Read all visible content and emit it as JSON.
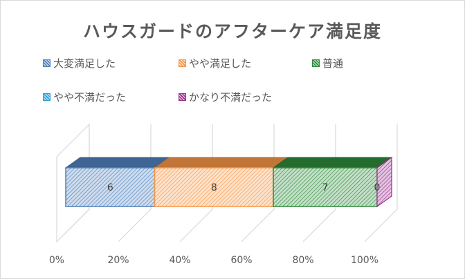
{
  "chart_data": {
    "type": "bar",
    "stacked": "100%",
    "orientation": "horizontal",
    "three_d": true,
    "title": "ハウスガードのアフターケア満足度",
    "categories": [
      ""
    ],
    "series": [
      {
        "name": "大変満足した",
        "values": [
          6
        ],
        "color": "#4f81bd",
        "data_label": "6"
      },
      {
        "name": "やや満足した",
        "values": [
          8
        ],
        "color": "#f79646",
        "data_label": "8"
      },
      {
        "name": "普通",
        "values": [
          7
        ],
        "color": "#2e8b3a",
        "data_label": "7"
      },
      {
        "name": "やや不満だった",
        "values": [
          0
        ],
        "color": "#2aa0d8",
        "data_label": ""
      },
      {
        "name": "かなり不満だった",
        "values": [
          0
        ],
        "color": "#9b2e8f",
        "data_label": "0"
      }
    ],
    "x_ticks": [
      "0%",
      "20%",
      "40%",
      "60%",
      "80%",
      "100%"
    ],
    "xlim": [
      0,
      100
    ],
    "legend": "top",
    "grid": true
  }
}
